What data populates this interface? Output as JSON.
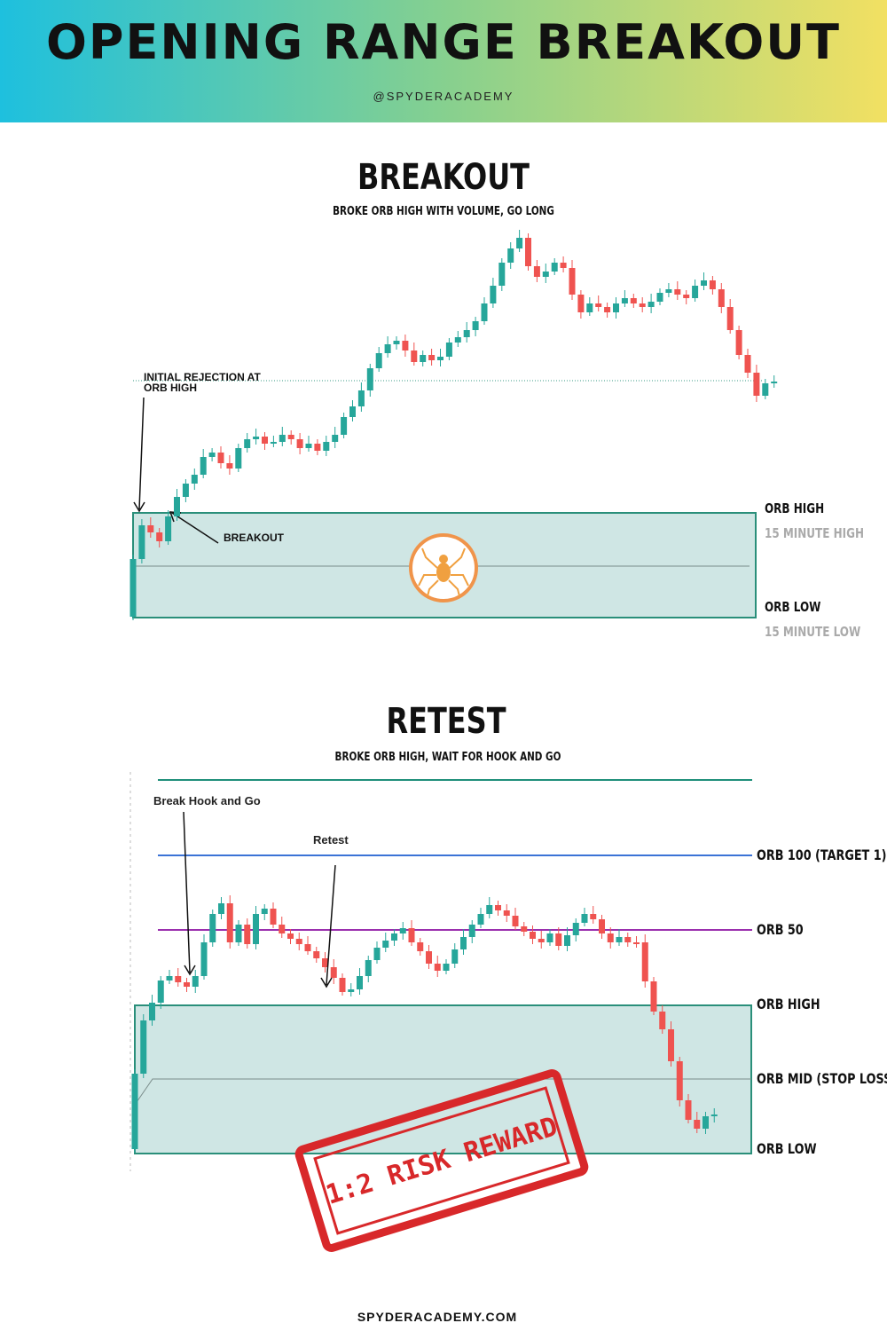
{
  "header": {
    "title": "OPENING RANGE BREAKOUT",
    "handle": "@SPYDERACADEMY"
  },
  "sections": [
    {
      "title": "BREAKOUT",
      "subtitle": "BROKE ORB HIGH WITH VOLUME, GO LONG",
      "annotations": [
        [
          "INITIAL REJECTION AT",
          "ORB HIGH"
        ],
        "BREAKOUT"
      ],
      "levels": [
        {
          "label": "ORB HIGH",
          "sublabel": "15 MINUTE HIGH"
        },
        {
          "label": "ORB LOW",
          "sublabel": "15 MINUTE LOW"
        }
      ]
    },
    {
      "title": "RETEST",
      "subtitle": "BROKE ORB HIGH, WAIT FOR HOOK AND GO",
      "annotations": [
        "Break Hook and Go",
        "Retest"
      ],
      "levels": [
        "ORB 100 (TARGET 1)",
        "ORB 50",
        "ORB HIGH",
        "ORB MID (STOP LOSS)",
        "ORB LOW"
      ],
      "stamp": "1:2 RISK REWARD"
    }
  ],
  "footer": "SPYDERACADEMY.COM"
}
